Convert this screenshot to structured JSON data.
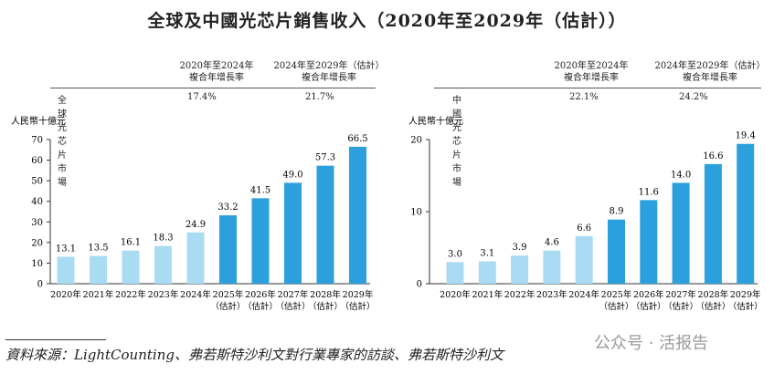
{
  "title": "全球及中國光芯片銷售收入（2020年至2029年（估計））",
  "tables": [
    {
      "col1": "2020年至2024年",
      "col1b": "複合年增長率",
      "col2": "2024年至2029年（估計）",
      "col2b": "複合年增長率",
      "row_label": "全球光芯片市場",
      "v1": "17.4%",
      "v2": "21.7%"
    },
    {
      "col1": "2020年至2024年",
      "col1b": "複合年增長率",
      "col2": "2024年至2029年（估計）",
      "col2b": "複合年增長率",
      "row_label": "中國光芯片市場",
      "v1": "22.1%",
      "v2": "24.2%"
    }
  ],
  "chart_data": [
    {
      "type": "bar",
      "ylabel": "人民幣十億元",
      "ylim": [
        0,
        70
      ],
      "yticks": [
        0,
        10,
        20,
        30,
        40,
        50,
        60,
        70
      ],
      "categories": [
        "2020年",
        "2021年",
        "2022年",
        "2023年",
        "2024年",
        "2025年\n（估計）",
        "2026年\n（估計）",
        "2027年\n（估計）",
        "2028年\n（估計）",
        "2029年\n（估計）"
      ],
      "values": [
        13.1,
        13.5,
        16.1,
        18.3,
        24.9,
        33.2,
        41.5,
        49.0,
        57.3,
        66.5
      ],
      "value_labels": [
        "13.1",
        "13.5",
        "16.1",
        "18.3",
        "24.9",
        "33.2",
        "41.5",
        "49.0",
        "57.3",
        "66.5"
      ]
    },
    {
      "type": "bar",
      "ylabel": "人民幣十億元",
      "ylim": [
        0,
        20
      ],
      "yticks": [
        0,
        10,
        20
      ],
      "categories": [
        "2020年",
        "2021年",
        "2022年",
        "2023年",
        "2024年",
        "2025年\n（估計）",
        "2026年\n（估計）",
        "2027年\n（估計）",
        "2028年\n（估計）",
        "2029年\n（估計）"
      ],
      "values": [
        3.0,
        3.1,
        3.9,
        4.6,
        6.6,
        8.9,
        11.6,
        14.0,
        16.6,
        19.4
      ],
      "value_labels": [
        "3.0",
        "3.1",
        "3.9",
        "4.6",
        "6.6",
        "8.9",
        "11.6",
        "14.0",
        "16.6",
        "19.4"
      ]
    }
  ],
  "colors": {
    "historical": "#a9dcf3",
    "estimated": "#2ca0dc"
  },
  "source": "資料來源：LightCounting、弗若斯特沙利文對行業專家的訪談、弗若斯特沙利文",
  "watermark": "公众号 · 活报告"
}
